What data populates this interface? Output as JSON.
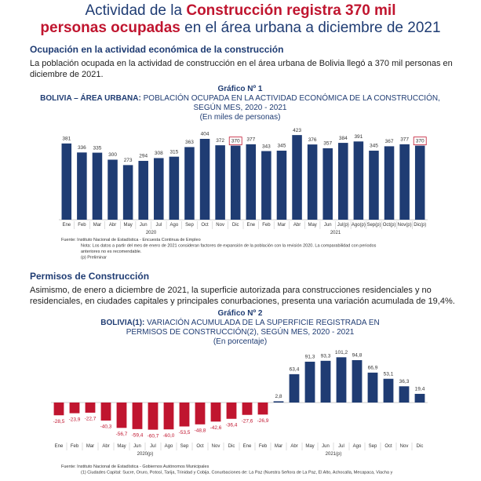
{
  "headline": {
    "part1": "Actividad de la ",
    "part2": "Construcción registra 370 mil",
    "part3": "personas ocupadas",
    "part4": " en el área urbana a diciembre de 2021"
  },
  "section1": {
    "heading": "Ocupación en la actividad económica de la construcción",
    "text": "La población ocupada en la actividad de construcción en el área urbana de Bolivia llegó a 370 mil personas en diciembre de 2021."
  },
  "section2": {
    "heading": "Permisos de Construcción",
    "text": "Asimismo, de enero a diciembre de 2021, la superficie autorizada para construcciones residenciales y no residenciales, en ciudades capitales y principales conurbaciones, presenta una variación acumulada de 19,4%."
  },
  "chart_data": [
    {
      "type": "bar",
      "label": "Gráfico Nº 1",
      "title_bold": "BOLIVIA – ÁREA URBANA:",
      "title": " POBLACIÓN OCUPADA EN LA ACTIVIDAD ECONÓMICA DE LA CONSTRUCCIÓN,",
      "title2": "SEGÚN MES, 2020 - 2021",
      "subtitle": "(En miles de personas)",
      "categories": [
        "Ene",
        "Feb",
        "Mar",
        "Abr",
        "May",
        "Jun",
        "Jul",
        "Ago",
        "Sep",
        "Oct",
        "Nov",
        "Dic",
        "Ene",
        "Feb",
        "Mar",
        "Abr",
        "May",
        "Jun",
        "Jul(p)",
        "Ago(p)",
        "Sep(p)",
        "Oct(p)",
        "Nov(p)",
        "Dic(p)"
      ],
      "values": [
        381,
        336,
        335,
        300,
        273,
        294,
        308,
        315,
        363,
        404,
        372,
        370,
        377,
        343,
        345,
        423,
        376,
        357,
        384,
        391,
        345,
        367,
        377,
        370
      ],
      "groups": [
        "2020",
        "2021"
      ],
      "color": "#1f3c73",
      "boxed_labels": [
        11,
        23
      ],
      "notes": [
        "Fuente: Instituto Nacional de Estadística - Encuesta Continua de Empleo",
        "Nota: Los datos a partir del mes de enero de 2021 consideran factores de expansión de la población con la revisión 2020. La comparabilidad con periodos",
        "anteriores no es recomendable.",
        "(p) Preliminar"
      ]
    },
    {
      "type": "bar",
      "label": "Gráfico Nº 2",
      "title_bold": "BOLIVIA(1):",
      "title": " VARIACIÓN ACUMULADA DE LA SUPERFICIE REGISTRADA EN",
      "title2": "PERMISOS DE CONSTRUCCIÓN(2), SEGÚN MES, 2020 - 2021",
      "subtitle": "(En porcentaje)",
      "categories": [
        "Ene",
        "Feb",
        "Mar",
        "Abr",
        "May",
        "Jun",
        "Jul",
        "Ago",
        "Sep",
        "Oct",
        "Nov",
        "Dic",
        "Ene",
        "Feb",
        "Mar",
        "Abr",
        "May",
        "Jun",
        "Jul",
        "Ago",
        "Sep",
        "Oct",
        "Nov",
        "Dic"
      ],
      "values": [
        -28.5,
        -23.9,
        -22.7,
        -40.3,
        -56.7,
        -59.4,
        -60.7,
        -60.0,
        -53.5,
        -48.8,
        -42.6,
        -36.4,
        -27.6,
        -26.9,
        2.8,
        63.4,
        91.3,
        93.3,
        101.2,
        94.8,
        66.9,
        53.1,
        36.3,
        19.4
      ],
      "value_labels": [
        "-28,5",
        "-23,9",
        "-22,7",
        "-40,3",
        "-56,7",
        "-59,4",
        "-60,7",
        "-60,0",
        "-53,5",
        "-48,8",
        "-42,6",
        "-36,4",
        "-27,6",
        "-26,9",
        "2,8",
        "63,4",
        "91,3",
        "93,3",
        "101,2",
        "94,8",
        "66,9",
        "53,1",
        "36,3",
        "19,4"
      ],
      "groups": [
        "2020(p)",
        "2021(p)"
      ],
      "color": "#1f3c73",
      "color_negative": "#c0152f",
      "notes": [
        "Fuente: Instituto Nacional de Estadística - Gobiernos Autónomos Municipales",
        "(1) Ciudades Capital: Sucre, Oruro, Potosí, Tarija, Trinidad y Cobija. Conurbaciones de: La Paz (Nuestra Señora de La Paz, El Alto, Achocalla, Mecapaca, Viacha y"
      ]
    }
  ]
}
